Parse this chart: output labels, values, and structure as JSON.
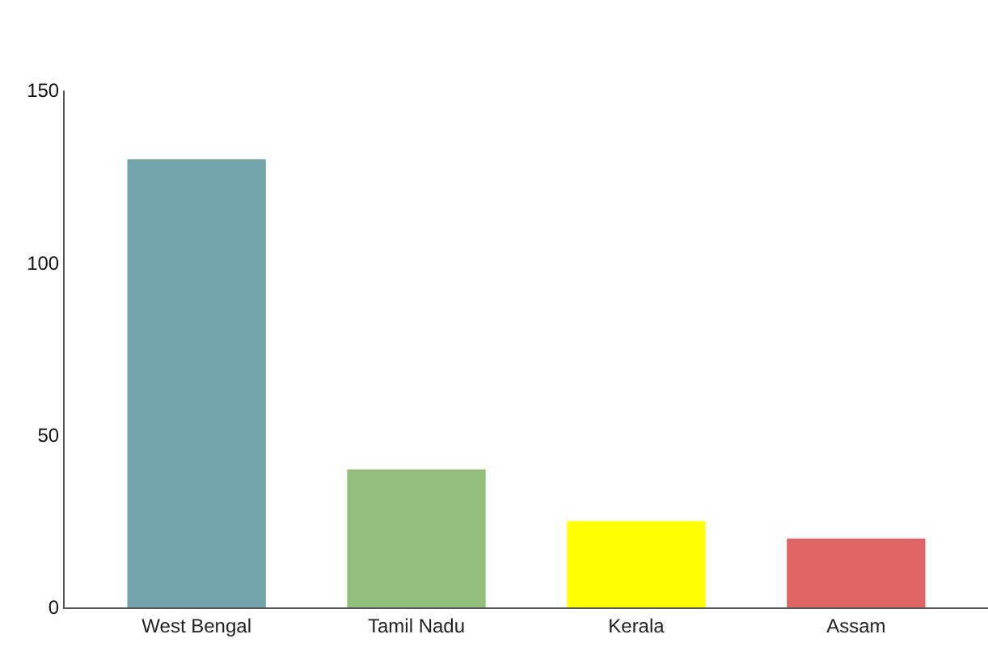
{
  "chart_data": {
    "type": "bar",
    "categories": [
      "West Bengal",
      "Tamil Nadu",
      "Kerala",
      "Assam"
    ],
    "values": [
      130,
      40,
      25,
      20
    ],
    "colors": [
      "#72a3ab",
      "#92c07c",
      "#ffff00",
      "#e06666"
    ],
    "ylim": [
      0,
      150
    ],
    "yticks": [
      0,
      50,
      100,
      150
    ]
  }
}
